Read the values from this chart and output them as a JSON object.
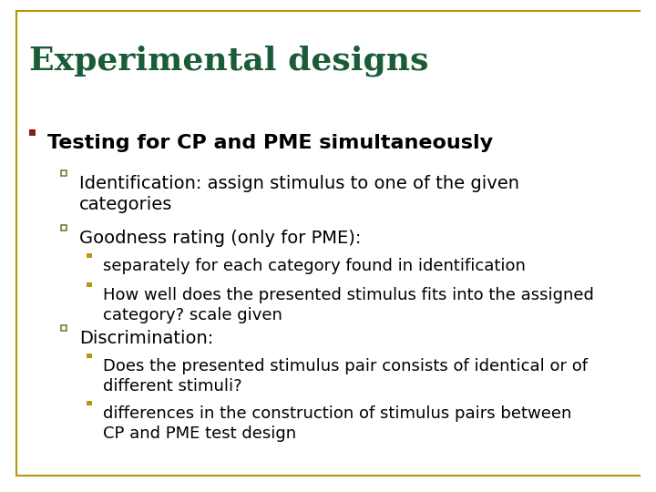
{
  "title": "Experimental designs",
  "title_color": "#1a5c38",
  "title_fontsize": 26,
  "background_color": "#ffffff",
  "border_color": "#b8960c",
  "text_color": "#000000",
  "l1_marker_color": "#8b1a1a",
  "l2_marker_color": "#7a7a3a",
  "l3_marker_color": "#b8960c",
  "level1_text": "Testing for CP and PME simultaneously",
  "level1_fontsize": 16,
  "level2_fontsize": 14,
  "level3_fontsize": 13,
  "level2": [
    "Identification: assign stimulus to one of the given\ncategories",
    "Goodness rating (only for PME):",
    "Discrimination:"
  ],
  "level3_goodness": [
    "separately for each category found in identification",
    "How well does the presented stimulus fits into the assigned\ncategory? scale given"
  ],
  "level3_discrimination": [
    "Does the presented stimulus pair consists of identical or of\ndifferent stimuli?",
    "differences in the construction of stimulus pairs between\nCP and PME test design"
  ]
}
